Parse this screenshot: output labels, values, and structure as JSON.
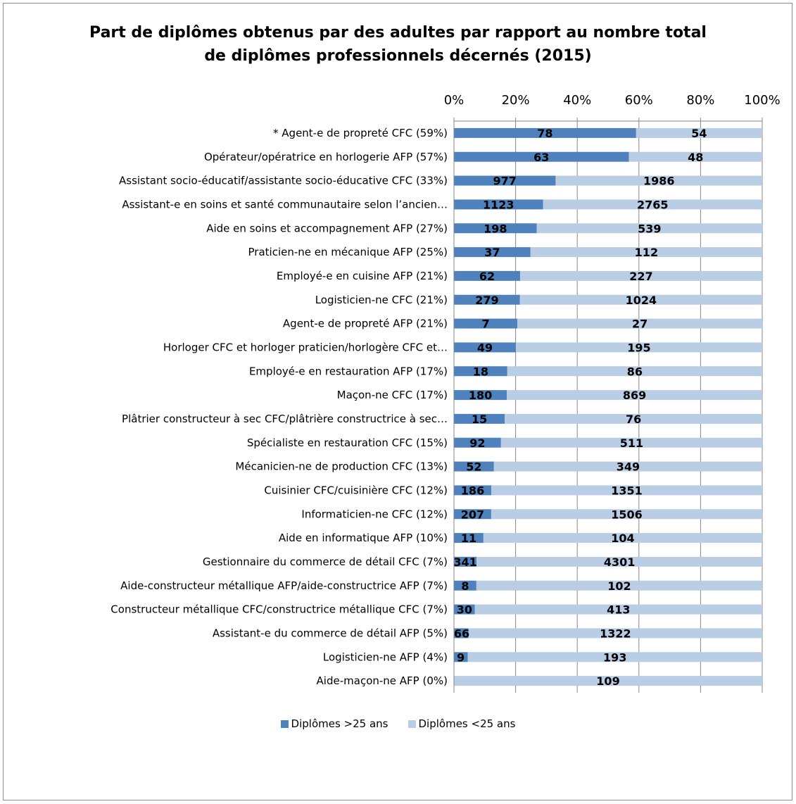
{
  "chart_data": {
    "type": "bar",
    "orientation": "horizontal",
    "stacking": "percent",
    "title": "Part de diplômes obtenus par des adultes par rapport au nombre total\nde diplômes professionnels décernés (2015)",
    "xaxis": {
      "position": "top",
      "ticks": [
        "0%",
        "20%",
        "40%",
        "60%",
        "80%",
        "100%"
      ],
      "range": [
        0,
        100
      ]
    },
    "grid": true,
    "legend": "bottom",
    "categories": [
      "* Agent-e de propreté CFC (59%)",
      "Opérateur/opératrice en horlogerie AFP (57%)",
      "Assistant socio-éducatif/assistante socio-éducative CFC (33%)",
      "Assistant-e en soins et santé communautaire selon l’ancien…",
      "Aide en soins et accompagnement AFP (27%)",
      "Praticien-ne en mécanique AFP (25%)",
      "Employé-e en cuisine AFP (21%)",
      "Logisticien-ne CFC (21%)",
      "Agent-e de propreté AFP (21%)",
      "Horloger CFC et horloger praticien/horlogère CFC et…",
      "Employé-e en restauration AFP (17%)",
      "Maçon-ne CFC (17%)",
      "Plâtrier constructeur à sec CFC/plâtrière constructrice à sec…",
      "Spécialiste en restauration CFC (15%)",
      "Mécanicien-ne de production CFC (13%)",
      "Cuisinier CFC/cuisinière CFC (12%)",
      "Informaticien-ne CFC (12%)",
      "Aide en informatique AFP (10%)",
      "Gestionnaire du commerce de détail CFC (7%)",
      "Aide-constructeur métallique AFP/aide-constructrice AFP (7%)",
      "Constructeur métallique CFC/constructrice métallique CFC (7%)",
      "Assistant-e du commerce de détail AFP (5%)",
      "Logisticien-ne AFP (4%)",
      "Aide-maçon-ne AFP (0%)"
    ],
    "series": [
      {
        "name": "Diplômes >25 ans",
        "color": "#4f81bd",
        "values": [
          78,
          63,
          977,
          1123,
          198,
          37,
          62,
          279,
          7,
          49,
          18,
          180,
          15,
          92,
          52,
          186,
          207,
          11,
          341,
          8,
          30,
          66,
          9,
          0
        ],
        "labels": [
          "78",
          "63",
          "977",
          "1123",
          "198",
          "37",
          "62",
          "279",
          "7",
          "49",
          "18",
          "180",
          "15",
          "92",
          "52",
          "186",
          "207",
          "11",
          "341",
          "8",
          "30",
          "66",
          "9",
          ""
        ]
      },
      {
        "name": "Diplômes <25 ans",
        "color": "#b9cde5",
        "values": [
          54,
          48,
          1986,
          2765,
          539,
          112,
          227,
          1024,
          27,
          195,
          86,
          869,
          76,
          511,
          349,
          1351,
          1506,
          104,
          4301,
          102,
          413,
          1322,
          193,
          109
        ],
        "labels": [
          "54",
          "48",
          "1986",
          "2765",
          "539",
          "112",
          "227",
          "1024",
          "27",
          "195",
          "86",
          "869",
          "76",
          "511",
          "349",
          "1351",
          "1506",
          "104",
          "4301",
          "102",
          "413",
          "1322",
          "193",
          "109"
        ]
      }
    ]
  }
}
